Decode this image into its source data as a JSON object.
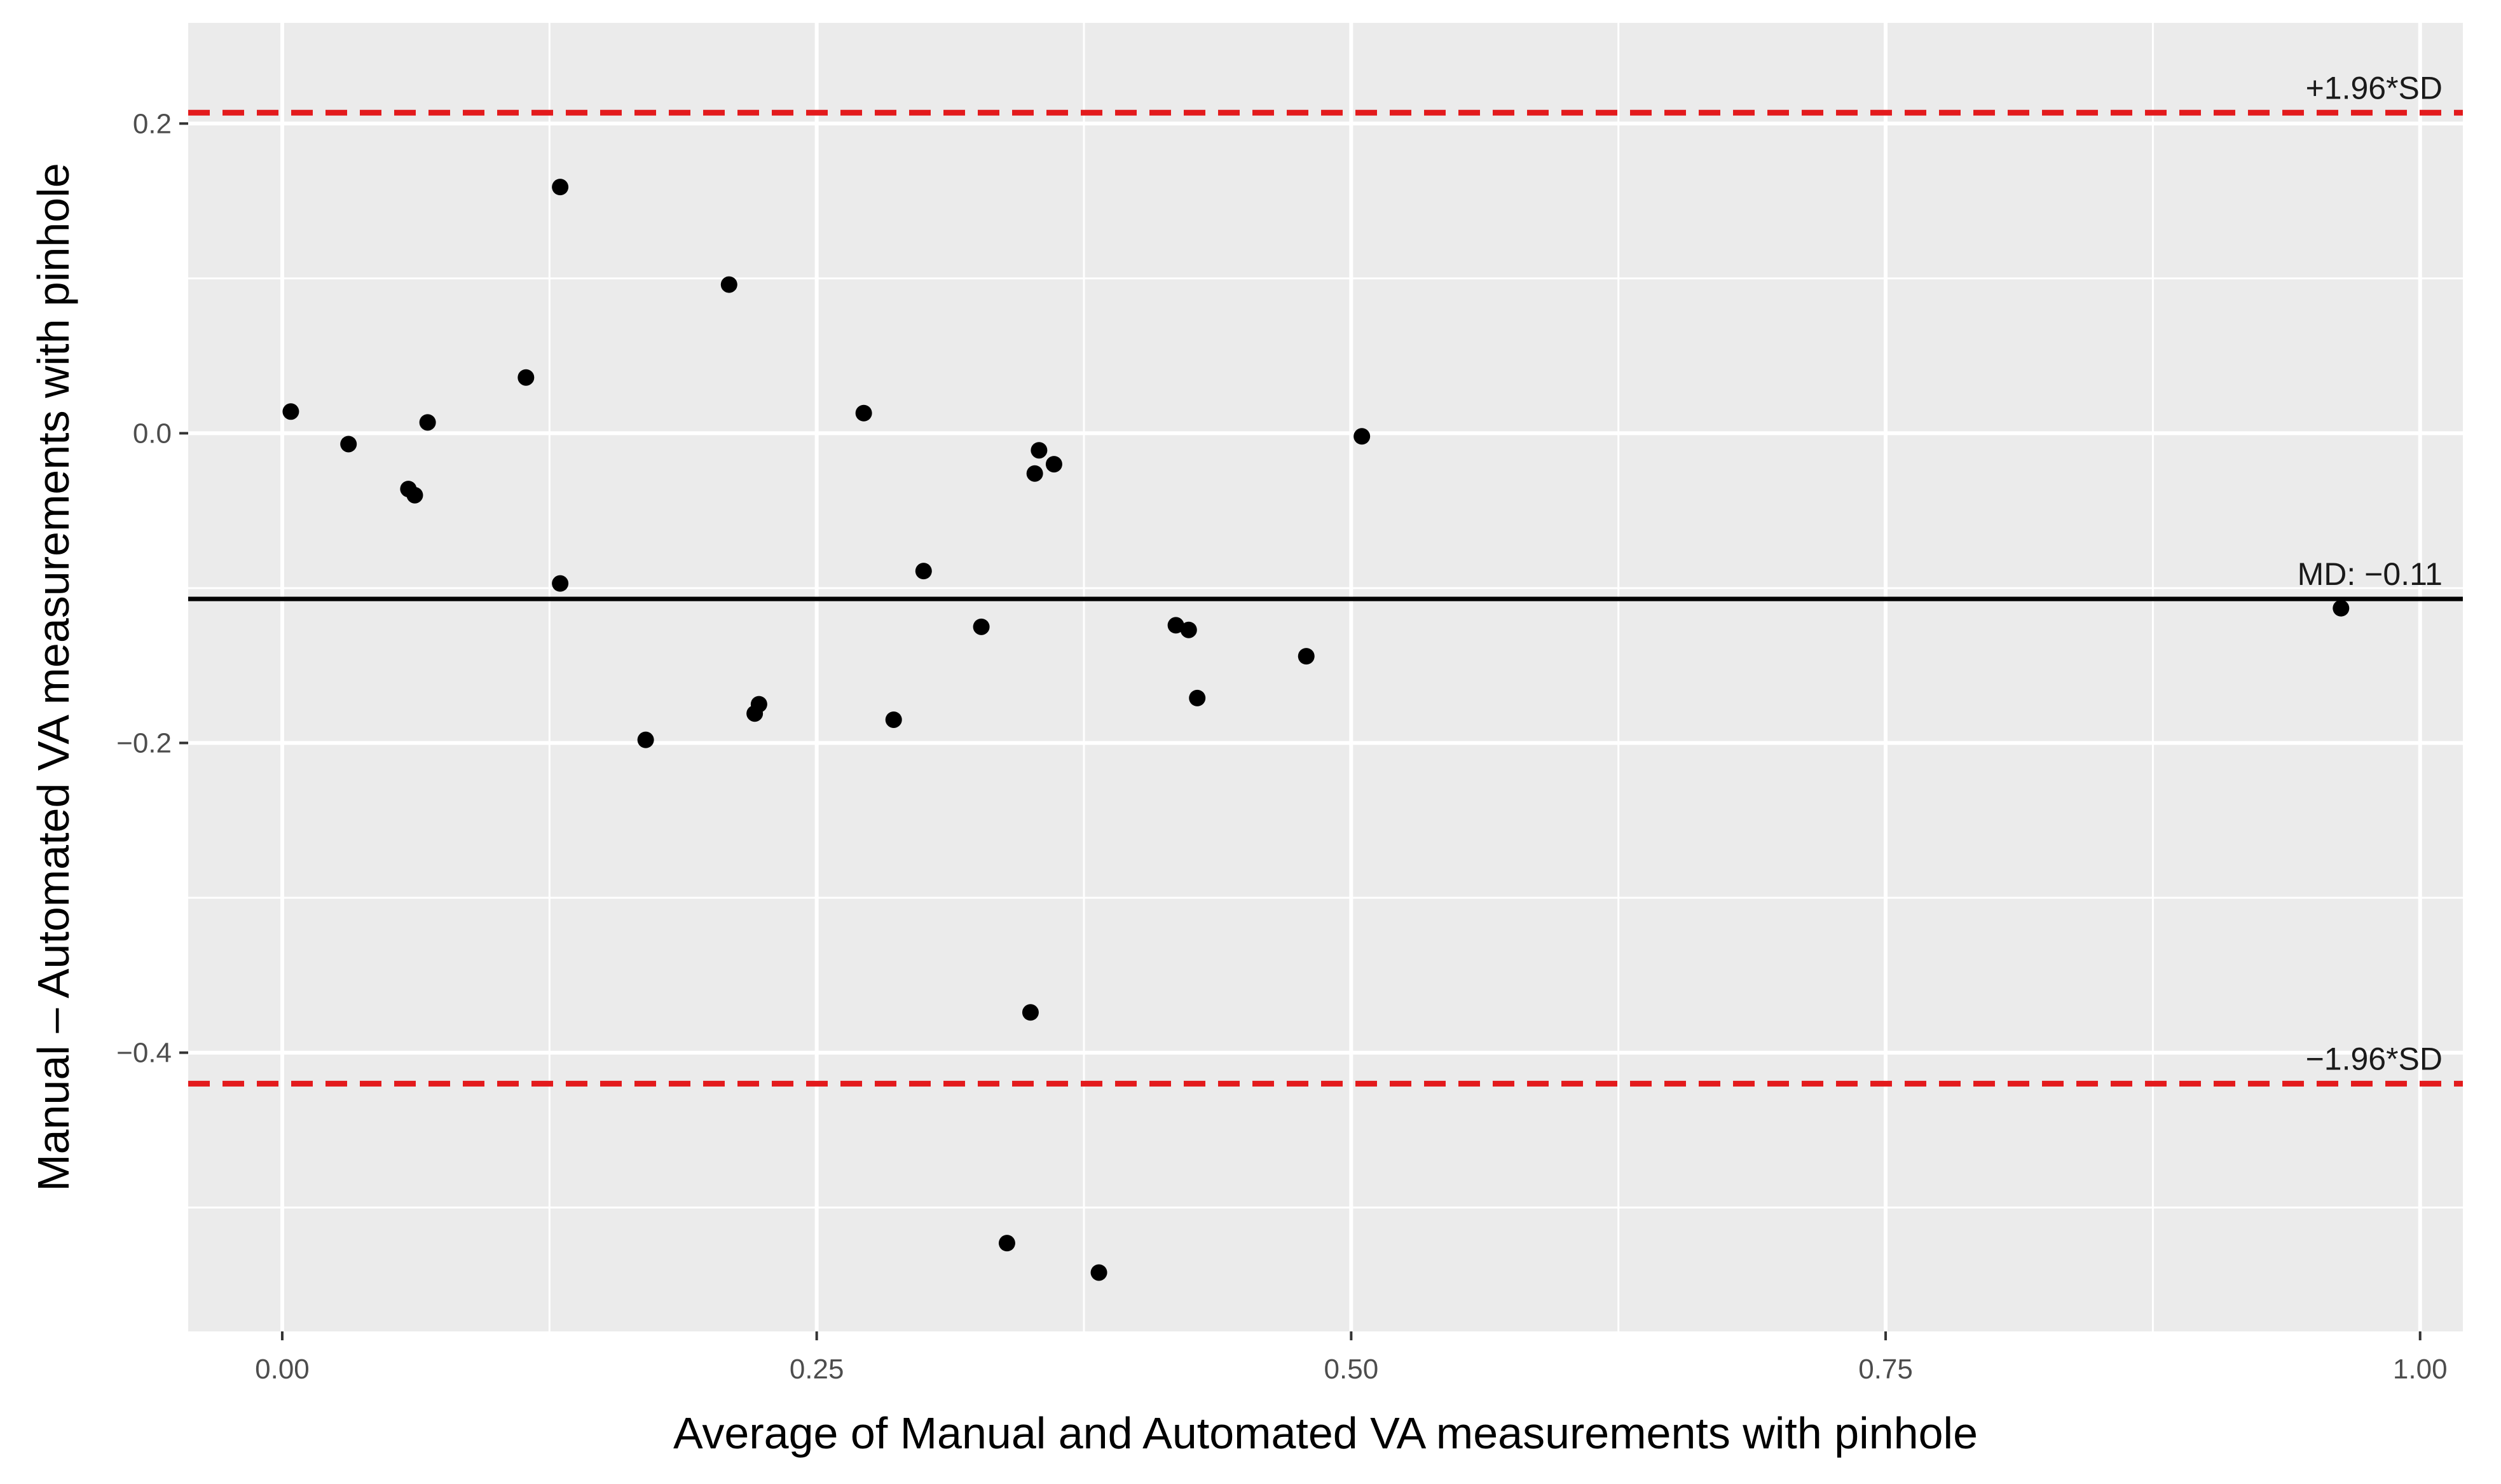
{
  "chart_data": {
    "type": "scatter",
    "title": "",
    "xlabel": "Average of Manual and Automated VA measurements with pinhole",
    "ylabel": "Manual – Automated VA measurements with pinhole",
    "xlim": [
      -0.044,
      1.02
    ],
    "ylim": [
      -0.58,
      0.265
    ],
    "x_ticks": [
      0.0,
      0.25,
      0.5,
      0.75,
      1.0
    ],
    "x_tick_labels": [
      "0.00",
      "0.25",
      "0.50",
      "0.75",
      "1.00"
    ],
    "y_ticks": [
      0.2,
      0.0,
      -0.2,
      -0.4
    ],
    "y_tick_labels": [
      "0.2",
      "0.0",
      "−0.2",
      "−0.4"
    ],
    "grid": true,
    "panel_background": "#ebebeb",
    "point_color": "#000000",
    "reference_lines": [
      {
        "key": "upper",
        "label": "+1.96*SD",
        "y": 0.207,
        "style": "dashed",
        "color": "#e31a1c"
      },
      {
        "key": "mean",
        "label": "MD: −0.11",
        "y": -0.107,
        "style": "solid",
        "color": "#000000"
      },
      {
        "key": "lower",
        "label": "−1.96*SD",
        "y": -0.42,
        "style": "dashed",
        "color": "#e31a1c"
      }
    ],
    "points": [
      {
        "x": 0.004,
        "y": 0.014
      },
      {
        "x": 0.031,
        "y": -0.007
      },
      {
        "x": 0.059,
        "y": -0.036
      },
      {
        "x": 0.062,
        "y": -0.04
      },
      {
        "x": 0.068,
        "y": 0.007
      },
      {
        "x": 0.114,
        "y": 0.036
      },
      {
        "x": 0.13,
        "y": 0.159
      },
      {
        "x": 0.13,
        "y": -0.097
      },
      {
        "x": 0.17,
        "y": -0.198
      },
      {
        "x": 0.209,
        "y": 0.096
      },
      {
        "x": 0.221,
        "y": -0.181
      },
      {
        "x": 0.223,
        "y": -0.175
      },
      {
        "x": 0.272,
        "y": 0.013
      },
      {
        "x": 0.286,
        "y": -0.185
      },
      {
        "x": 0.3,
        "y": -0.089
      },
      {
        "x": 0.327,
        "y": -0.125
      },
      {
        "x": 0.339,
        "y": -0.523
      },
      {
        "x": 0.35,
        "y": -0.374
      },
      {
        "x": 0.352,
        "y": -0.026
      },
      {
        "x": 0.354,
        "y": -0.011
      },
      {
        "x": 0.361,
        "y": -0.02
      },
      {
        "x": 0.382,
        "y": -0.542
      },
      {
        "x": 0.418,
        "y": -0.124
      },
      {
        "x": 0.424,
        "y": -0.127
      },
      {
        "x": 0.428,
        "y": -0.171
      },
      {
        "x": 0.479,
        "y": -0.144
      },
      {
        "x": 0.505,
        "y": -0.002
      },
      {
        "x": 0.963,
        "y": -0.113
      }
    ]
  }
}
